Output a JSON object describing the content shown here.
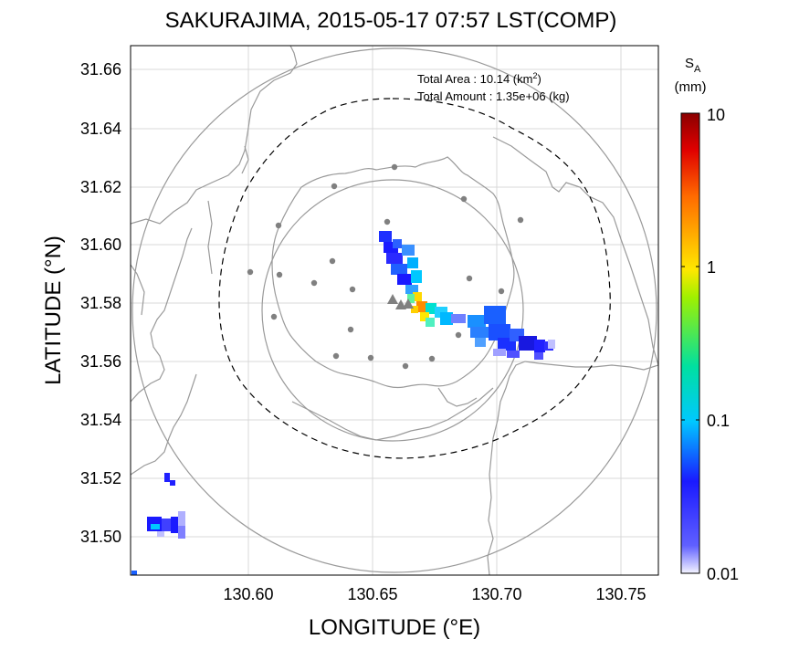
{
  "title": "SAKURAJIMA, 2015-05-17 07:57 LST(COMP)",
  "xlabel": "LONGITUDE (°E)",
  "ylabel": "LATITUDE (°N)",
  "x_ticks": [
    "130.60",
    "130.65",
    "130.70",
    "130.75"
  ],
  "y_ticks": [
    "31.66",
    "31.64",
    "31.62",
    "31.60",
    "31.58",
    "31.56",
    "31.54",
    "31.52",
    "31.50"
  ],
  "annotation": {
    "area_label": "Total Area   : 10.14 (km",
    "area_sup": "2",
    "area_close": ")",
    "amount_label": "Total Amount : 1.35e+06 (kg)"
  },
  "colorbar": {
    "title_main": "S",
    "title_sub": "A",
    "unit": "(mm)",
    "ticks": [
      "10",
      "1",
      "0.1",
      "0.01"
    ],
    "scale": "log",
    "range": [
      0.01,
      10
    ],
    "colors": [
      "#f4f4ff",
      "#1a1aff",
      "#00c8ff",
      "#ffe800",
      "#ff6a00",
      "#8b0000"
    ]
  },
  "map": {
    "lon_range": [
      130.553,
      130.765
    ],
    "lat_range": [
      31.487,
      31.667
    ],
    "coast_color": "#9a9a9a",
    "ring_color": "#9a9a9a",
    "dashed_ring_color": "#000000",
    "station_color": "#808080",
    "grid": true
  }
}
